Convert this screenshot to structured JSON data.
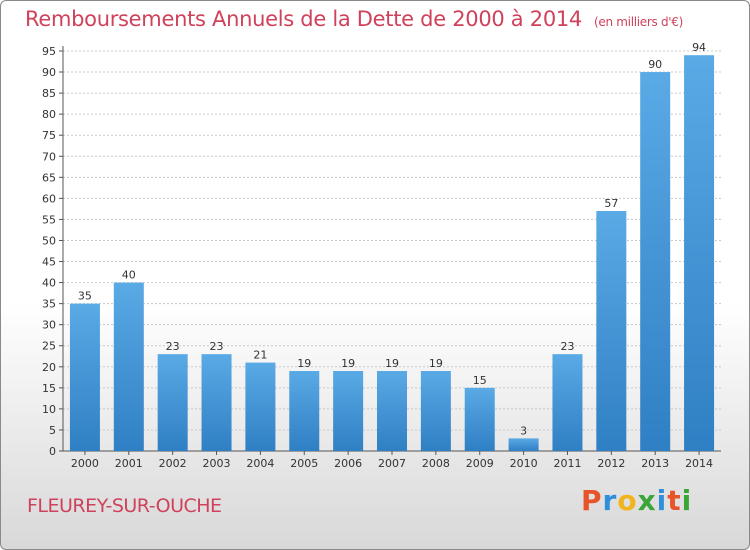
{
  "header": {
    "title": "Remboursements Annuels de la Dette de 2000 à 2014",
    "unit": "(en milliers d'€)"
  },
  "footer": {
    "commune": "FLEUREY-SUR-OUCHE",
    "logo_letters": [
      "P",
      "r",
      "o",
      "x",
      "i",
      "t",
      "i"
    ],
    "logo_colors": [
      "#e8542a",
      "#2f8fd8",
      "#f2b41c",
      "#3aa63a",
      "#2f8fd8",
      "#e8542a",
      "#3aa63a"
    ]
  },
  "colors": {
    "bar_light": "#5aaae6",
    "bar_dark": "#2f7fc4",
    "grid": "#c8c8c8",
    "title": "#d0415b"
  },
  "chart_data": {
    "type": "bar",
    "categories": [
      "2000",
      "2001",
      "2002",
      "2003",
      "2004",
      "2005",
      "2006",
      "2007",
      "2008",
      "2009",
      "2010",
      "2011",
      "2012",
      "2013",
      "2014"
    ],
    "values": [
      35,
      40,
      23,
      23,
      21,
      19,
      19,
      19,
      19,
      15,
      3,
      23,
      57,
      90,
      94
    ],
    "title": "Remboursements Annuels de la Dette de 2000 à 2014",
    "xlabel": "",
    "ylabel": "",
    "ylim": [
      0,
      95
    ],
    "yticks": [
      0,
      5,
      10,
      15,
      20,
      25,
      30,
      35,
      40,
      45,
      50,
      55,
      60,
      65,
      70,
      75,
      80,
      85,
      90,
      95
    ],
    "grid": true
  }
}
